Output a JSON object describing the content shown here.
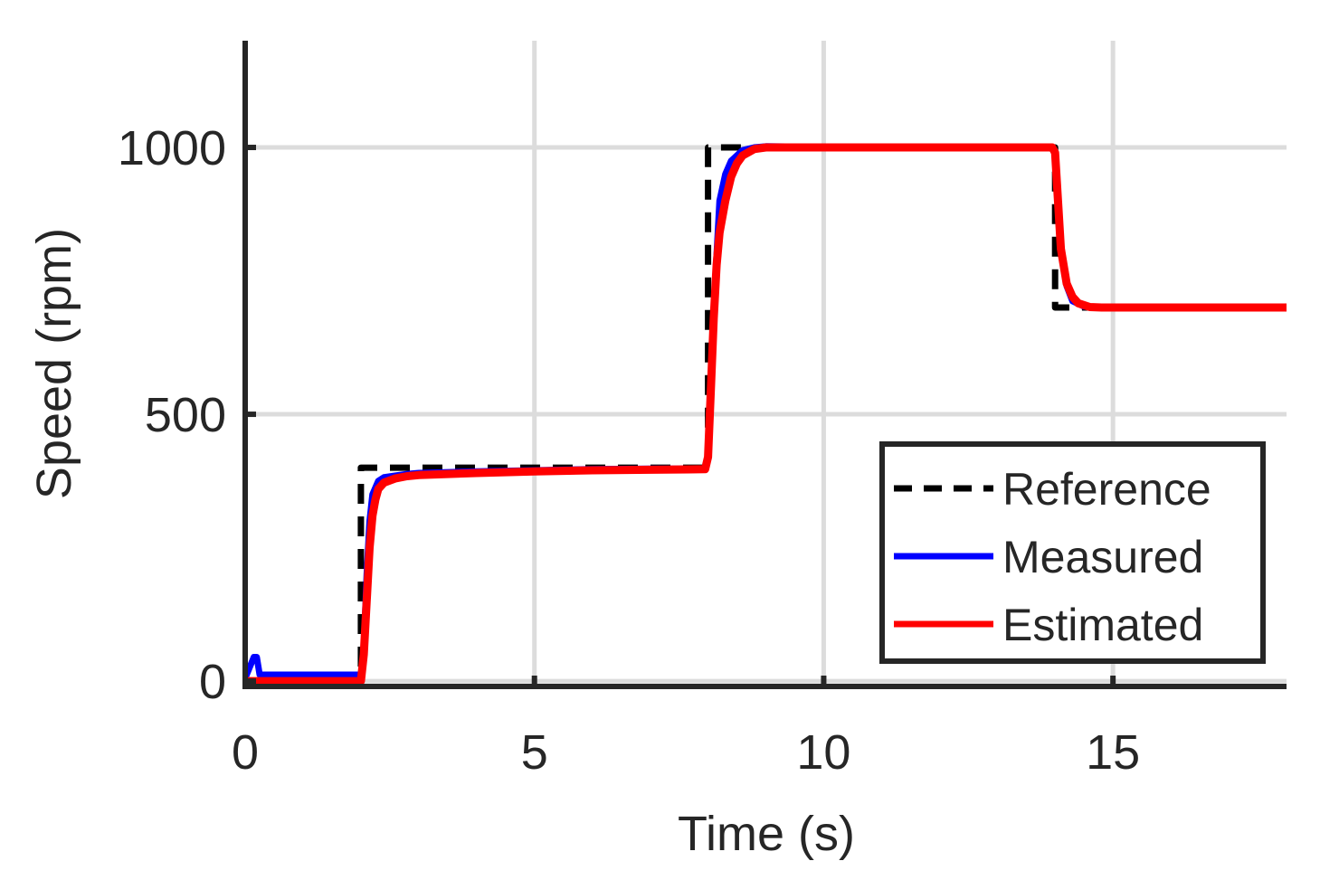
{
  "chart_data": {
    "type": "line",
    "title": "",
    "xlabel": "Time (s)",
    "ylabel": "Speed (rpm)",
    "xlim": [
      0,
      18
    ],
    "ylim": [
      -10,
      1200
    ],
    "xticks": [
      0,
      5,
      10,
      15
    ],
    "yticks": [
      0,
      500,
      1000
    ],
    "xtick_labels": [
      "0",
      "5",
      "10",
      "15"
    ],
    "ytick_labels": [
      "0",
      "500",
      "1000"
    ],
    "grid": true,
    "legend_position": "bottom-right",
    "colors": {
      "Reference": "#000000",
      "Measured": "#0000ff",
      "Estimated": "#ff0000",
      "axis": "#262626",
      "grid": "#dcdcdc"
    },
    "series": [
      {
        "name": "Reference",
        "style": "dashed",
        "x": [
          0,
          2,
          2,
          8,
          8,
          14,
          14,
          18
        ],
        "y": [
          0,
          0,
          400,
          400,
          1000,
          1000,
          700,
          700
        ]
      },
      {
        "name": "Measured",
        "style": "solid",
        "x": [
          0,
          0.15,
          0.2,
          0.25,
          0.3,
          2.0,
          2.05,
          2.1,
          2.15,
          2.2,
          2.3,
          2.4,
          2.6,
          2.8,
          3.0,
          4.0,
          5.0,
          6.0,
          7.0,
          7.95,
          8.0,
          8.1,
          8.2,
          8.3,
          8.4,
          8.6,
          8.8,
          9.0,
          10.0,
          11.0,
          12.0,
          13.0,
          13.95,
          14.0,
          14.1,
          14.2,
          14.3,
          14.5,
          14.8,
          15.0,
          16.0,
          17.0,
          18.0
        ],
        "y": [
          5,
          45,
          45,
          12,
          12,
          12,
          60,
          200,
          300,
          350,
          375,
          382,
          385,
          388,
          390,
          393,
          395,
          397,
          398,
          398,
          420,
          700,
          900,
          950,
          975,
          995,
          1000,
          1002,
          1001,
          1000,
          1000,
          1000,
          1000,
          990,
          820,
          740,
          712,
          702,
          700,
          700,
          700,
          700,
          700
        ]
      },
      {
        "name": "Estimated",
        "style": "solid",
        "x": [
          0,
          1.8,
          2.0,
          2.05,
          2.1,
          2.15,
          2.2,
          2.25,
          2.3,
          2.4,
          2.6,
          2.8,
          3.0,
          4.0,
          5.0,
          6.0,
          7.0,
          7.95,
          8.0,
          8.05,
          8.1,
          8.15,
          8.2,
          8.3,
          8.4,
          8.5,
          8.6,
          8.8,
          9.0,
          10.0,
          11.0,
          12.0,
          13.0,
          13.95,
          14.0,
          14.05,
          14.1,
          14.2,
          14.3,
          14.4,
          14.6,
          14.8,
          15.0,
          16.0,
          17.0,
          18.0
        ],
        "y": [
          0,
          0,
          0,
          50,
          150,
          250,
          310,
          340,
          360,
          372,
          380,
          384,
          386,
          390,
          393,
          395,
          396,
          397,
          420,
          550,
          680,
          780,
          840,
          900,
          945,
          970,
          985,
          997,
          1000,
          1000,
          1000,
          1000,
          1000,
          1000,
          990,
          900,
          810,
          745,
          720,
          708,
          701,
          700,
          700,
          700,
          700,
          700
        ]
      }
    ]
  }
}
